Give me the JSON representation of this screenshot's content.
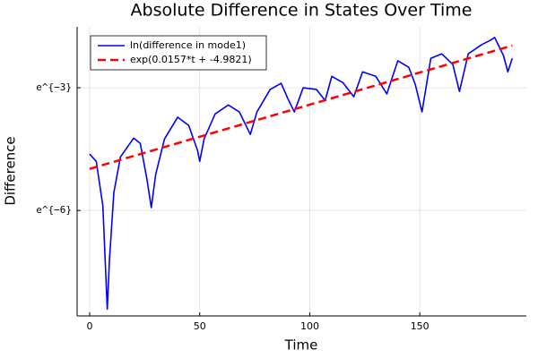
{
  "chart_data": {
    "type": "line",
    "title": "Absolute Difference in States Over Time",
    "xlabel": "Time",
    "ylabel": "Difference",
    "yscale": "log",
    "grid": true,
    "legend": "top-left",
    "xlim": [
      -5.7,
      198.4
    ],
    "xticks": [
      0,
      50,
      100,
      150
    ],
    "ylim": [
      0.000188,
      0.2209
    ],
    "yticks": [
      {
        "value": 0.0024788,
        "label": "e^{−6}"
      },
      {
        "value": 0.049787,
        "label": "e^{−3}"
      }
    ],
    "series": [
      {
        "name": "ln(difference in mode1)",
        "color": "#0000ff",
        "style": "solid",
        "x": [
          0,
          3,
          6,
          8,
          9,
          11,
          14,
          20,
          23,
          26,
          28,
          30,
          34,
          40,
          45,
          49,
          50,
          52,
          57,
          63,
          68,
          73,
          76,
          82,
          87,
          90,
          93,
          97,
          103,
          107,
          110,
          115,
          120,
          124,
          130,
          135,
          140,
          145,
          148,
          151,
          155,
          160,
          165,
          168,
          172,
          178,
          182,
          184,
          188,
          190,
          192
        ],
        "values": [
          0.00985,
          0.00823,
          0.00277,
          0.000222,
          0.000747,
          0.00385,
          0.00919,
          0.01455,
          0.01278,
          0.00536,
          0.00266,
          0.00598,
          0.01426,
          0.02424,
          0.01984,
          0.01078,
          0.00823,
          0.01426,
          0.02625,
          0.03271,
          0.0276,
          0.01592,
          0.0276,
          0.04783,
          0.05558,
          0.03839,
          0.0276,
          0.04979,
          0.04783,
          0.03652,
          0.06587,
          0.0567,
          0.03996,
          0.07353,
          0.06587,
          0.04285,
          0.09633,
          0.08208,
          0.0534,
          0.0276,
          0.1023,
          0.1142,
          0.08804,
          0.0455,
          0.1142,
          0.1423,
          0.1588,
          0.1703,
          0.1097,
          0.07353,
          0.1023
        ]
      },
      {
        "name": "exp(0.0157*t + -4.9821)",
        "color": "#ff0000",
        "style": "dashed",
        "x": [
          0,
          192
        ],
        "values": [
          0.00686,
          0.1397
        ]
      }
    ]
  }
}
